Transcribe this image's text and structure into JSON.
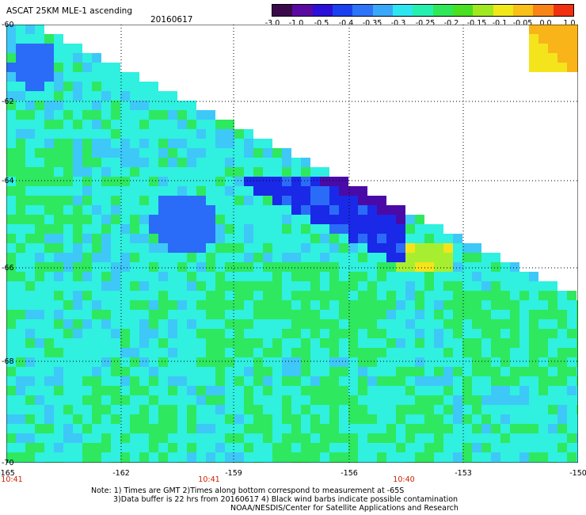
{
  "header": {
    "title": "ASCAT 25KM MLE-1 ascending",
    "date": "20160617"
  },
  "colorbar": {
    "tick_labels": [
      "-3.0",
      "-1.0",
      "-0.5",
      "-0.4",
      "-0.35",
      "-0.3",
      "-0.25",
      "-0.2",
      "-0.15",
      "-0.1",
      "-0.05",
      "0.0",
      "1.0"
    ],
    "colors": [
      "#3a0a4a",
      "#5a0aa0",
      "#2a10d8",
      "#1a40f0",
      "#2e74f8",
      "#3aa8fa",
      "#2ee6f0",
      "#26f0b0",
      "#2ee858",
      "#48e020",
      "#a0e820",
      "#f0e818",
      "#f8c018",
      "#f88418",
      "#f03010"
    ]
  },
  "map": {
    "lat_labels": [
      "-60",
      "-62",
      "-64",
      "-66",
      "-68",
      "-70"
    ],
    "lon_labels": [
      "-165",
      "-162",
      "-159",
      "-156",
      "-153",
      "-150"
    ],
    "time_labels": [
      "10:41",
      "10:41",
      "10:40"
    ],
    "palette": {
      "ocean_green": "#2ee860",
      "ocean_cyan": "#30f0e0",
      "ocean_sky": "#3ec8f8",
      "ocean_blue": "#2a6cf8",
      "deep_blue": "#1a28e8",
      "violet": "#4a0aa8",
      "lime": "#a8ee30",
      "yellow": "#f4e41c",
      "orange": "#f8b418",
      "grid": "#000000"
    }
  },
  "notes": {
    "line1": "Note: 1) Times are GMT 2)Times along bottom correspond to measurement at -65S",
    "line2": "3)Data buffer is 22 hrs from 20160617 4) Black wind barbs indicate possible contamination",
    "line3": "NOAA/NESDIS/Center for Satellite Applications and Research"
  }
}
